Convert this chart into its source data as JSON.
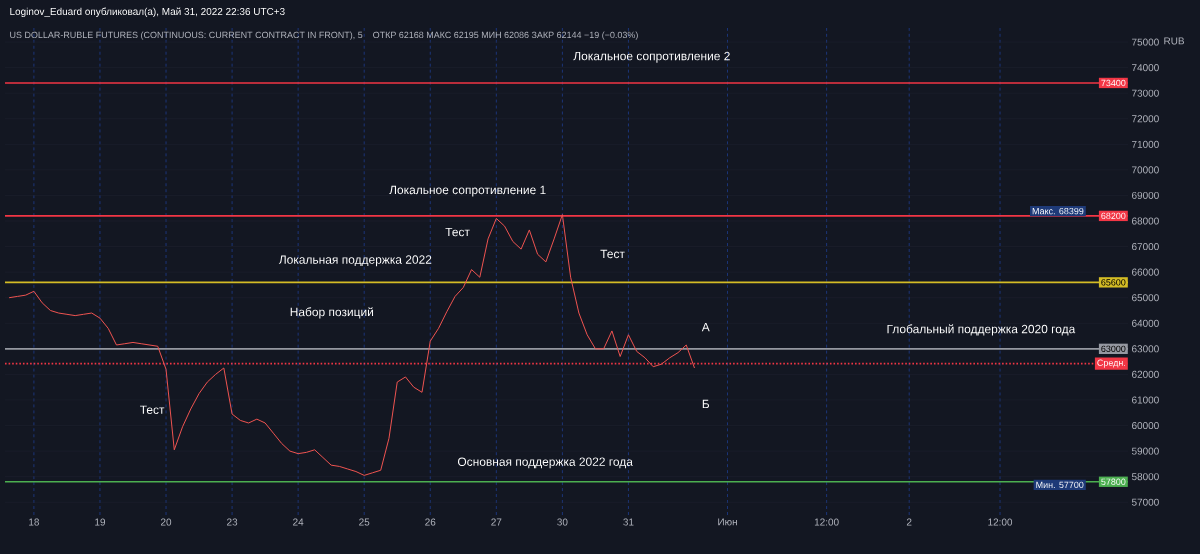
{
  "chart_data": {
    "type": "line",
    "title": "US DOLLAR-RUBLE FUTURES (CONTINUOUS: CURRENT CONTRACT IN FRONT), 5",
    "subtitle": "Loginov_Eduard опубликовал(а), Май 31, 2022 22:36 UTC+3",
    "ylabel": "RUB",
    "categories": [
      null,
      null,
      null,
      "18",
      null,
      null,
      null,
      null,
      null,
      null,
      null,
      "19",
      null,
      null,
      null,
      null,
      null,
      null,
      null,
      "20",
      null,
      null,
      null,
      null,
      null,
      null,
      null,
      "23",
      null,
      null,
      null,
      null,
      null,
      null,
      null,
      "24",
      null,
      null,
      null,
      null,
      null,
      null,
      null,
      "25",
      null,
      null,
      null,
      null,
      null,
      null,
      null,
      "26",
      null,
      null,
      null,
      null,
      null,
      null,
      null,
      "27",
      null,
      null,
      null,
      null,
      null,
      null,
      null,
      "30",
      null,
      null,
      null,
      null,
      null,
      null,
      null,
      "31",
      null,
      null,
      null,
      null,
      null,
      null,
      null,
      null,
      null,
      null,
      null,
      "Июн",
      null,
      null,
      null,
      null,
      null,
      null,
      null,
      null,
      null,
      null,
      null,
      "12:00",
      null,
      null,
      null,
      null,
      null,
      null,
      null,
      null,
      null,
      "2",
      null,
      null,
      null,
      null,
      null,
      null,
      null,
      null,
      null,
      null,
      "12:00",
      null,
      null,
      null,
      null,
      null,
      null,
      null,
      null,
      null,
      null,
      null,
      null,
      null,
      null,
      null
    ],
    "series": [
      {
        "color": "#ef5350",
        "values": [
          65000,
          65050,
          65100,
          65250,
          64800,
          64500,
          64400,
          64350,
          64300,
          64350,
          64400,
          64200,
          63800,
          63150,
          63200,
          63250,
          63200,
          63150,
          63100,
          62200,
          59050,
          59950,
          60650,
          61250,
          61700,
          62000,
          62250,
          60450,
          60200,
          60100,
          60250,
          60100,
          59700,
          59300,
          59000,
          58900,
          58950,
          59050,
          58750,
          58450,
          58400,
          58300,
          58200,
          58050,
          58150,
          58250,
          59500,
          61700,
          61900,
          61500,
          61300,
          63300,
          63800,
          64450,
          65050,
          65400,
          66100,
          65800,
          67300,
          68100,
          67800,
          67200,
          66900,
          67650,
          66700,
          66400,
          67300,
          68250,
          65800,
          64400,
          63550,
          63000,
          63000,
          63700,
          62700,
          63550,
          62900,
          62650,
          62300,
          62400,
          62650,
          62850,
          63150,
          62250,
          null,
          null,
          null,
          null,
          null,
          null,
          null,
          null,
          null,
          null,
          null,
          null,
          null,
          null,
          null,
          null,
          null,
          null,
          null,
          null,
          null,
          null,
          null,
          null,
          null,
          null,
          null,
          null,
          null,
          null,
          null,
          null,
          null,
          null,
          null,
          null,
          null,
          null,
          null,
          null,
          null,
          null,
          null,
          null,
          null,
          null,
          null,
          null,
          null,
          null,
          null,
          null
        ]
      }
    ],
    "ylim": [
      56500,
      75550
    ],
    "yticks": [
      57000,
      58000,
      59000,
      60000,
      61000,
      62000,
      63000,
      64000,
      65000,
      66000,
      67000,
      68000,
      69000,
      70000,
      71000,
      72000,
      73000,
      74000,
      75000
    ],
    "grid": true,
    "marker": "none",
    "line_style": "solid",
    "ref_lines": [
      {
        "axis": "y",
        "value": 73400,
        "label": "73400",
        "color": "#f23645",
        "line_style": "solid"
      },
      {
        "axis": "y",
        "value": 68200,
        "label": "68200",
        "color": "#f23645",
        "line_style": "solid"
      },
      {
        "axis": "y",
        "value": 65600,
        "label": "65600",
        "color": "#d4bc25",
        "line_style": "solid"
      },
      {
        "axis": "y",
        "value": 63000,
        "label": "63000",
        "color": "#9598a1",
        "line_style": "solid"
      },
      {
        "axis": "y",
        "value": 62421,
        "label": "Средн.",
        "color": "#f23645",
        "line_style": "dotted"
      },
      {
        "axis": "y",
        "value": 57800,
        "label": "57800",
        "color": "#4caf50",
        "line_style": "solid"
      }
    ],
    "annotations": [
      "ОТКР 62168  МАКС 62195  МИН 62086  ЗАКР 62144  −19 (−0.03%)",
      "Макс. 68399",
      "Мин. 57700",
      "Локальное сопротивление 2",
      "Локальное сопротивление 1",
      "Тест",
      "Тест",
      "Локальная поддержка 2022",
      "Набор позиций",
      "Тест",
      "А",
      "Б",
      "Глобальный поддержка 2020 года",
      "Основная поддержка 2022 года"
    ]
  }
}
